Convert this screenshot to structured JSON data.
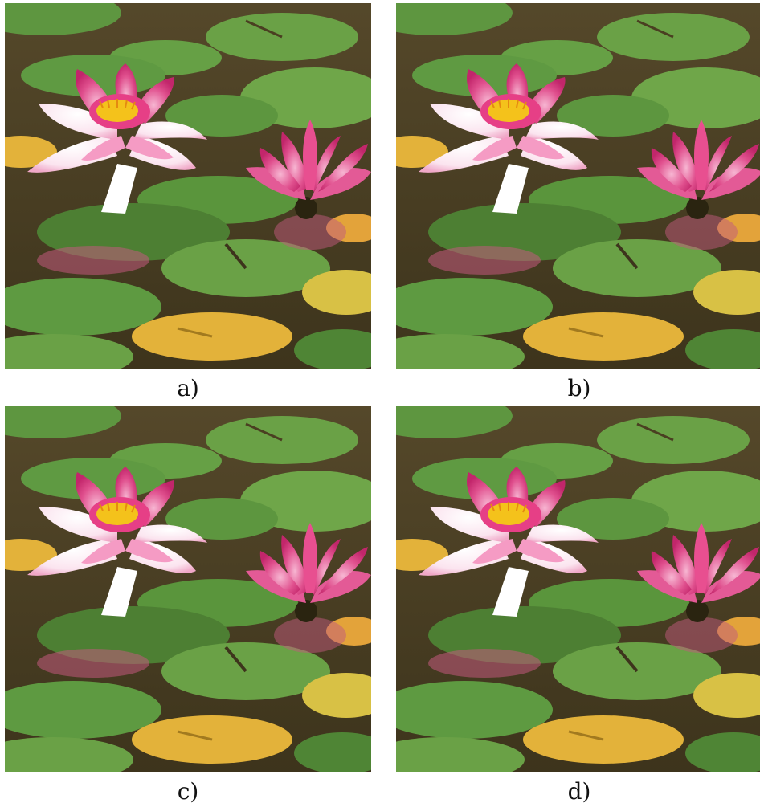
{
  "figure": {
    "panels": [
      {
        "id": "a",
        "caption": "a)"
      },
      {
        "id": "b",
        "caption": "b)"
      },
      {
        "id": "c",
        "caption": "c)"
      },
      {
        "id": "d",
        "caption": "d)"
      }
    ]
  },
  "colors": {
    "water": "#4a3f21",
    "pad_green": "#6aa146",
    "pad_dark": "#4d7f33",
    "pad_yellow": "#e3b23a",
    "petal_pink": "#e0508e",
    "petal_white": "#fbe9f1",
    "stamen": "#f4c21b"
  }
}
